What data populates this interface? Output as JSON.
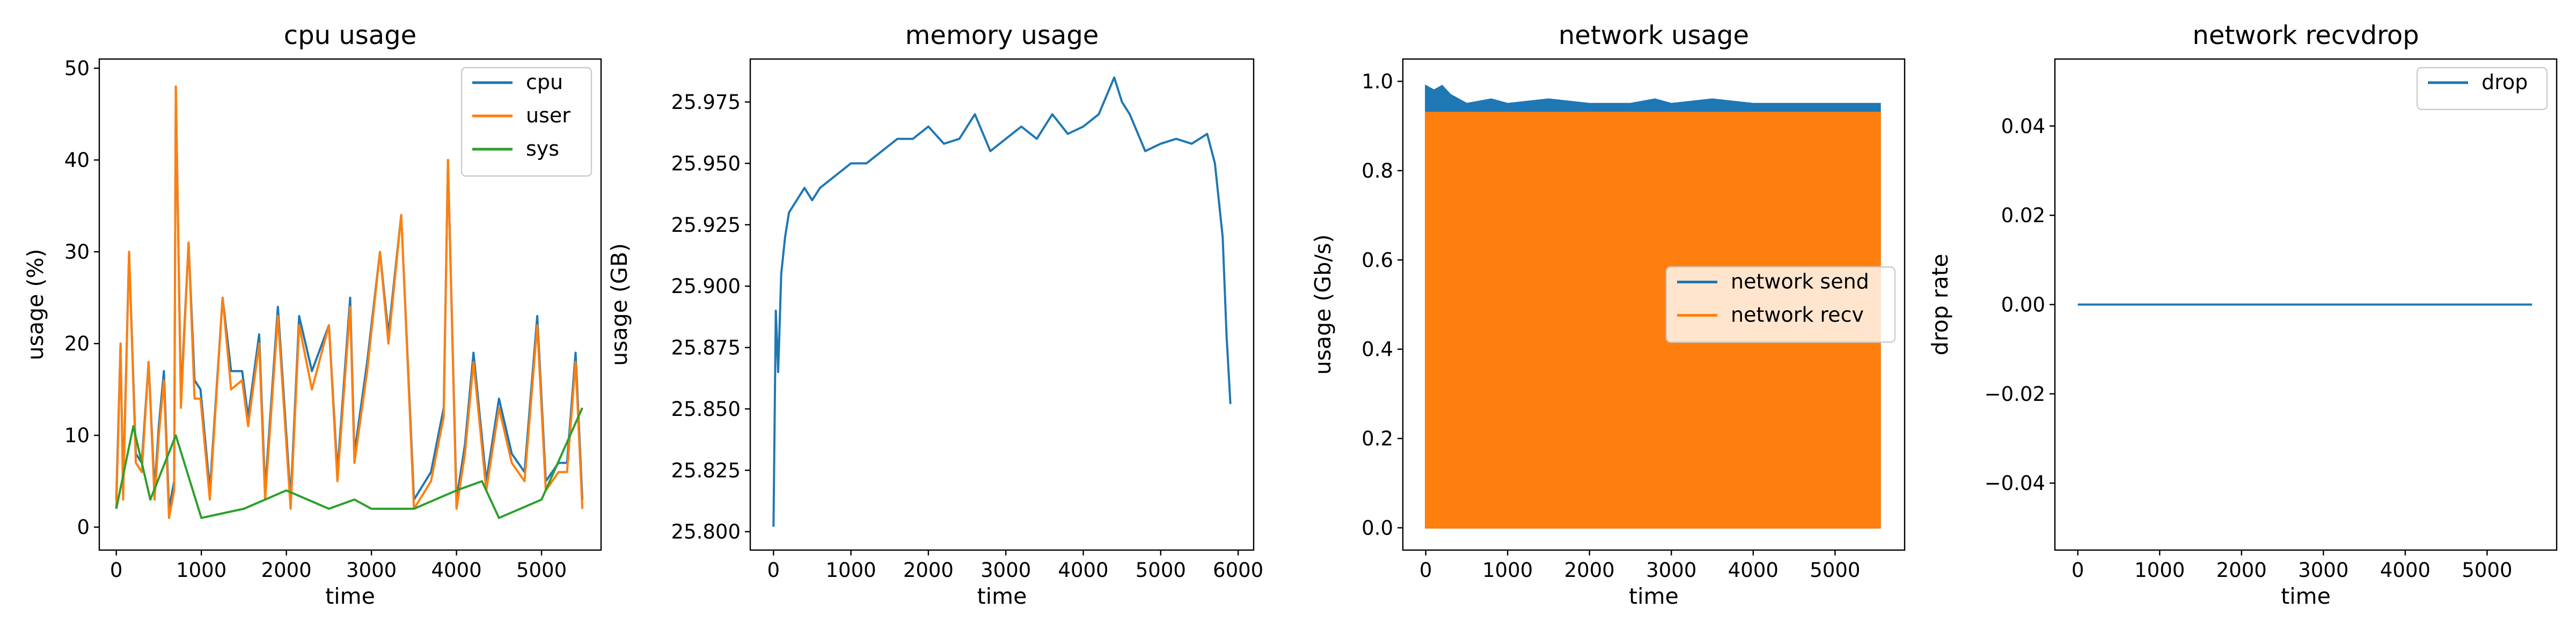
{
  "chart_data": [
    {
      "type": "line",
      "title": "cpu usage",
      "xlabel": "time",
      "ylabel": "usage (%)",
      "xlim": [
        -200,
        5700
      ],
      "ylim": [
        -2.5,
        51
      ],
      "xticks": [
        0,
        1000,
        2000,
        3000,
        4000,
        5000
      ],
      "yticks": [
        0,
        10,
        20,
        30,
        40,
        50
      ],
      "xticklabels": [
        "0",
        "1000",
        "2000",
        "3000",
        "4000",
        "5000"
      ],
      "yticklabels": [
        "0",
        "10",
        "20",
        "30",
        "40",
        "50"
      ],
      "legend": "top-right",
      "series": [
        {
          "name": "cpu",
          "color": "#1f77b4",
          "x": [
            0,
            50,
            80,
            150,
            230,
            300,
            380,
            450,
            500,
            560,
            620,
            680,
            700,
            760,
            850,
            920,
            990,
            1100,
            1250,
            1350,
            1480,
            1550,
            1680,
            1750,
            1900,
            2050,
            2150,
            2300,
            2500,
            2600,
            2750,
            2800,
            2950,
            3100,
            3200,
            3350,
            3500,
            3700,
            3850,
            3900,
            4000,
            4100,
            4200,
            4350,
            4500,
            4650,
            4800,
            4950,
            5050,
            5200,
            5300,
            5400,
            5480
          ],
          "y": [
            3,
            20,
            4,
            30,
            8,
            7,
            18,
            4,
            11,
            17,
            2,
            5,
            48,
            14,
            31,
            16,
            15,
            4,
            25,
            17,
            17,
            12,
            21,
            4,
            24,
            3,
            23,
            17,
            22,
            6,
            25,
            8,
            18,
            30,
            21,
            34,
            3,
            6,
            13,
            40,
            3,
            9,
            19,
            5,
            14,
            8,
            6,
            23,
            5,
            7,
            7,
            19,
            3
          ]
        },
        {
          "name": "user",
          "color": "#ff7f0e",
          "x": [
            0,
            50,
            80,
            150,
            230,
            300,
            380,
            450,
            500,
            560,
            620,
            680,
            700,
            760,
            850,
            920,
            990,
            1100,
            1250,
            1350,
            1480,
            1550,
            1680,
            1750,
            1900,
            2050,
            2150,
            2300,
            2500,
            2600,
            2750,
            2800,
            2950,
            3100,
            3200,
            3350,
            3500,
            3700,
            3850,
            3900,
            4000,
            4100,
            4200,
            4350,
            4500,
            4650,
            4800,
            4950,
            5050,
            5200,
            5300,
            5400,
            5480
          ],
          "y": [
            2,
            20,
            3,
            30,
            7,
            6,
            18,
            3,
            10,
            16,
            1,
            4,
            48,
            13,
            31,
            14,
            14,
            3,
            25,
            15,
            16,
            11,
            20,
            3,
            23,
            2,
            22,
            15,
            22,
            5,
            24,
            7,
            17,
            30,
            20,
            34,
            2,
            5,
            12,
            40,
            2,
            8,
            18,
            4,
            13,
            7,
            5,
            22,
            4,
            6,
            6,
            18,
            2
          ]
        },
        {
          "name": "sys",
          "color": "#2ca02c",
          "x": [
            0,
            200,
            400,
            700,
            1000,
            1500,
            2000,
            2500,
            2800,
            3000,
            3500,
            4000,
            4300,
            4500,
            5000,
            5480
          ],
          "y": [
            2,
            11,
            3,
            10,
            1,
            2,
            4,
            2,
            3,
            2,
            2,
            4,
            5,
            1,
            3,
            13
          ]
        }
      ]
    },
    {
      "type": "line",
      "title": "memory usage",
      "xlabel": "time",
      "ylabel": "usage (GB)",
      "xlim": [
        -300,
        6200
      ],
      "ylim": [
        25.7925,
        25.9925
      ],
      "xticks": [
        0,
        1000,
        2000,
        3000,
        4000,
        5000,
        6000
      ],
      "yticks": [
        25.8,
        25.825,
        25.85,
        25.875,
        25.9,
        25.925,
        25.95,
        25.975
      ],
      "xticklabels": [
        "0",
        "1000",
        "2000",
        "3000",
        "4000",
        "5000",
        "6000"
      ],
      "yticklabels": [
        "25.800",
        "25.825",
        "25.850",
        "25.875",
        "25.900",
        "25.925",
        "25.950",
        "25.975"
      ],
      "legend": "none",
      "series": [
        {
          "color": "#1f77b4",
          "x": [
            0,
            30,
            60,
            100,
            150,
            200,
            300,
            400,
            500,
            600,
            800,
            1000,
            1200,
            1400,
            1600,
            1800,
            2000,
            2200,
            2400,
            2600,
            2800,
            3000,
            3200,
            3400,
            3600,
            3800,
            4000,
            4200,
            4400,
            4500,
            4600,
            4800,
            5000,
            5200,
            5400,
            5600,
            5700,
            5800,
            5850,
            5900
          ],
          "y": [
            25.802,
            25.89,
            25.865,
            25.905,
            25.92,
            25.93,
            25.935,
            25.94,
            25.935,
            25.94,
            25.945,
            25.95,
            25.95,
            25.955,
            25.96,
            25.96,
            25.965,
            25.958,
            25.96,
            25.97,
            25.955,
            25.96,
            25.965,
            25.96,
            25.97,
            25.962,
            25.965,
            25.97,
            25.985,
            25.975,
            25.97,
            25.955,
            25.958,
            25.96,
            25.958,
            25.962,
            25.95,
            25.92,
            25.88,
            25.852
          ]
        }
      ]
    },
    {
      "type": "area",
      "title": "network usage",
      "xlabel": "time",
      "ylabel": "usage (Gb/s)",
      "xlim": [
        -280,
        5850
      ],
      "ylim": [
        -0.05,
        1.05
      ],
      "xticks": [
        0,
        1000,
        2000,
        3000,
        4000,
        5000
      ],
      "yticks": [
        0,
        0.2,
        0.4,
        0.6,
        0.8,
        1.0
      ],
      "xticklabels": [
        "0",
        "1000",
        "2000",
        "3000",
        "4000",
        "5000"
      ],
      "yticklabels": [
        "0.0",
        "0.2",
        "0.4",
        "0.6",
        "0.8",
        "1.0"
      ],
      "legend": "center-right",
      "series": [
        {
          "name": "network send",
          "color": "#1f77b4",
          "x": [
            0,
            100,
            200,
            300,
            500,
            800,
            1000,
            1500,
            2000,
            2500,
            2800,
            3000,
            3500,
            4000,
            4500,
            4900,
            5200,
            5550
          ],
          "y": [
            0.99,
            0.98,
            0.99,
            0.97,
            0.95,
            0.96,
            0.95,
            0.96,
            0.95,
            0.95,
            0.96,
            0.95,
            0.96,
            0.95,
            0.95,
            0.95,
            0.95,
            0.95
          ]
        },
        {
          "name": "network recv",
          "color": "#ff7f0e",
          "x": [
            0,
            5550
          ],
          "y": [
            0.93,
            0.93
          ]
        }
      ]
    },
    {
      "type": "line",
      "title": "network recvdrop",
      "xlabel": "time",
      "ylabel": "drop rate",
      "xlim": [
        -280,
        5850
      ],
      "ylim": [
        -0.055,
        0.055
      ],
      "xticks": [
        0,
        1000,
        2000,
        3000,
        4000,
        5000
      ],
      "yticks": [
        -0.04,
        -0.02,
        0,
        0.02,
        0.04
      ],
      "xticklabels": [
        "0",
        "1000",
        "2000",
        "3000",
        "4000",
        "5000"
      ],
      "yticklabels": [
        "−0.04",
        "−0.02",
        "0.00",
        "0.02",
        "0.04"
      ],
      "legend": "top-right",
      "series": [
        {
          "name": "drop",
          "color": "#1f77b4",
          "x": [
            0,
            5550
          ],
          "y": [
            0,
            0
          ]
        }
      ]
    }
  ]
}
